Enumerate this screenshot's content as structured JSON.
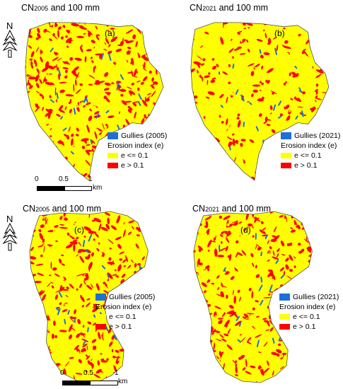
{
  "panels": [
    {
      "title_prefix": "CN",
      "title_sub": "2005",
      "title_suffix": " and 100 mm",
      "label": "(a)",
      "gullies_label": "Gullies (2005)"
    },
    {
      "title_prefix": "CN",
      "title_sub": "2021",
      "title_suffix": " and 100 mm",
      "label": "(b)",
      "gullies_label": "Gullies (2021)"
    },
    {
      "title_prefix": "CN",
      "title_sub": "2005",
      "title_suffix": " and 100 mm",
      "label": "(c)",
      "gullies_label": "Gullies (2005)"
    },
    {
      "title_prefix": "CN",
      "title_sub": "2021",
      "title_suffix": " and 100 mm",
      "label": "(d)",
      "gullies_label": "Gullies (2021)"
    }
  ],
  "legend": {
    "title": "Erosion index (e)",
    "low_label": "e <= 0.1",
    "high_label": "e > 0.1"
  },
  "scale_bar": {
    "ticks": [
      "0",
      "0.5",
      "1"
    ],
    "unit": "km"
  },
  "north_label": "N",
  "colors": {
    "low": "#ffff00",
    "high": "#ff0000",
    "gullies": "#1e6fd9",
    "outline": "#555555"
  }
}
